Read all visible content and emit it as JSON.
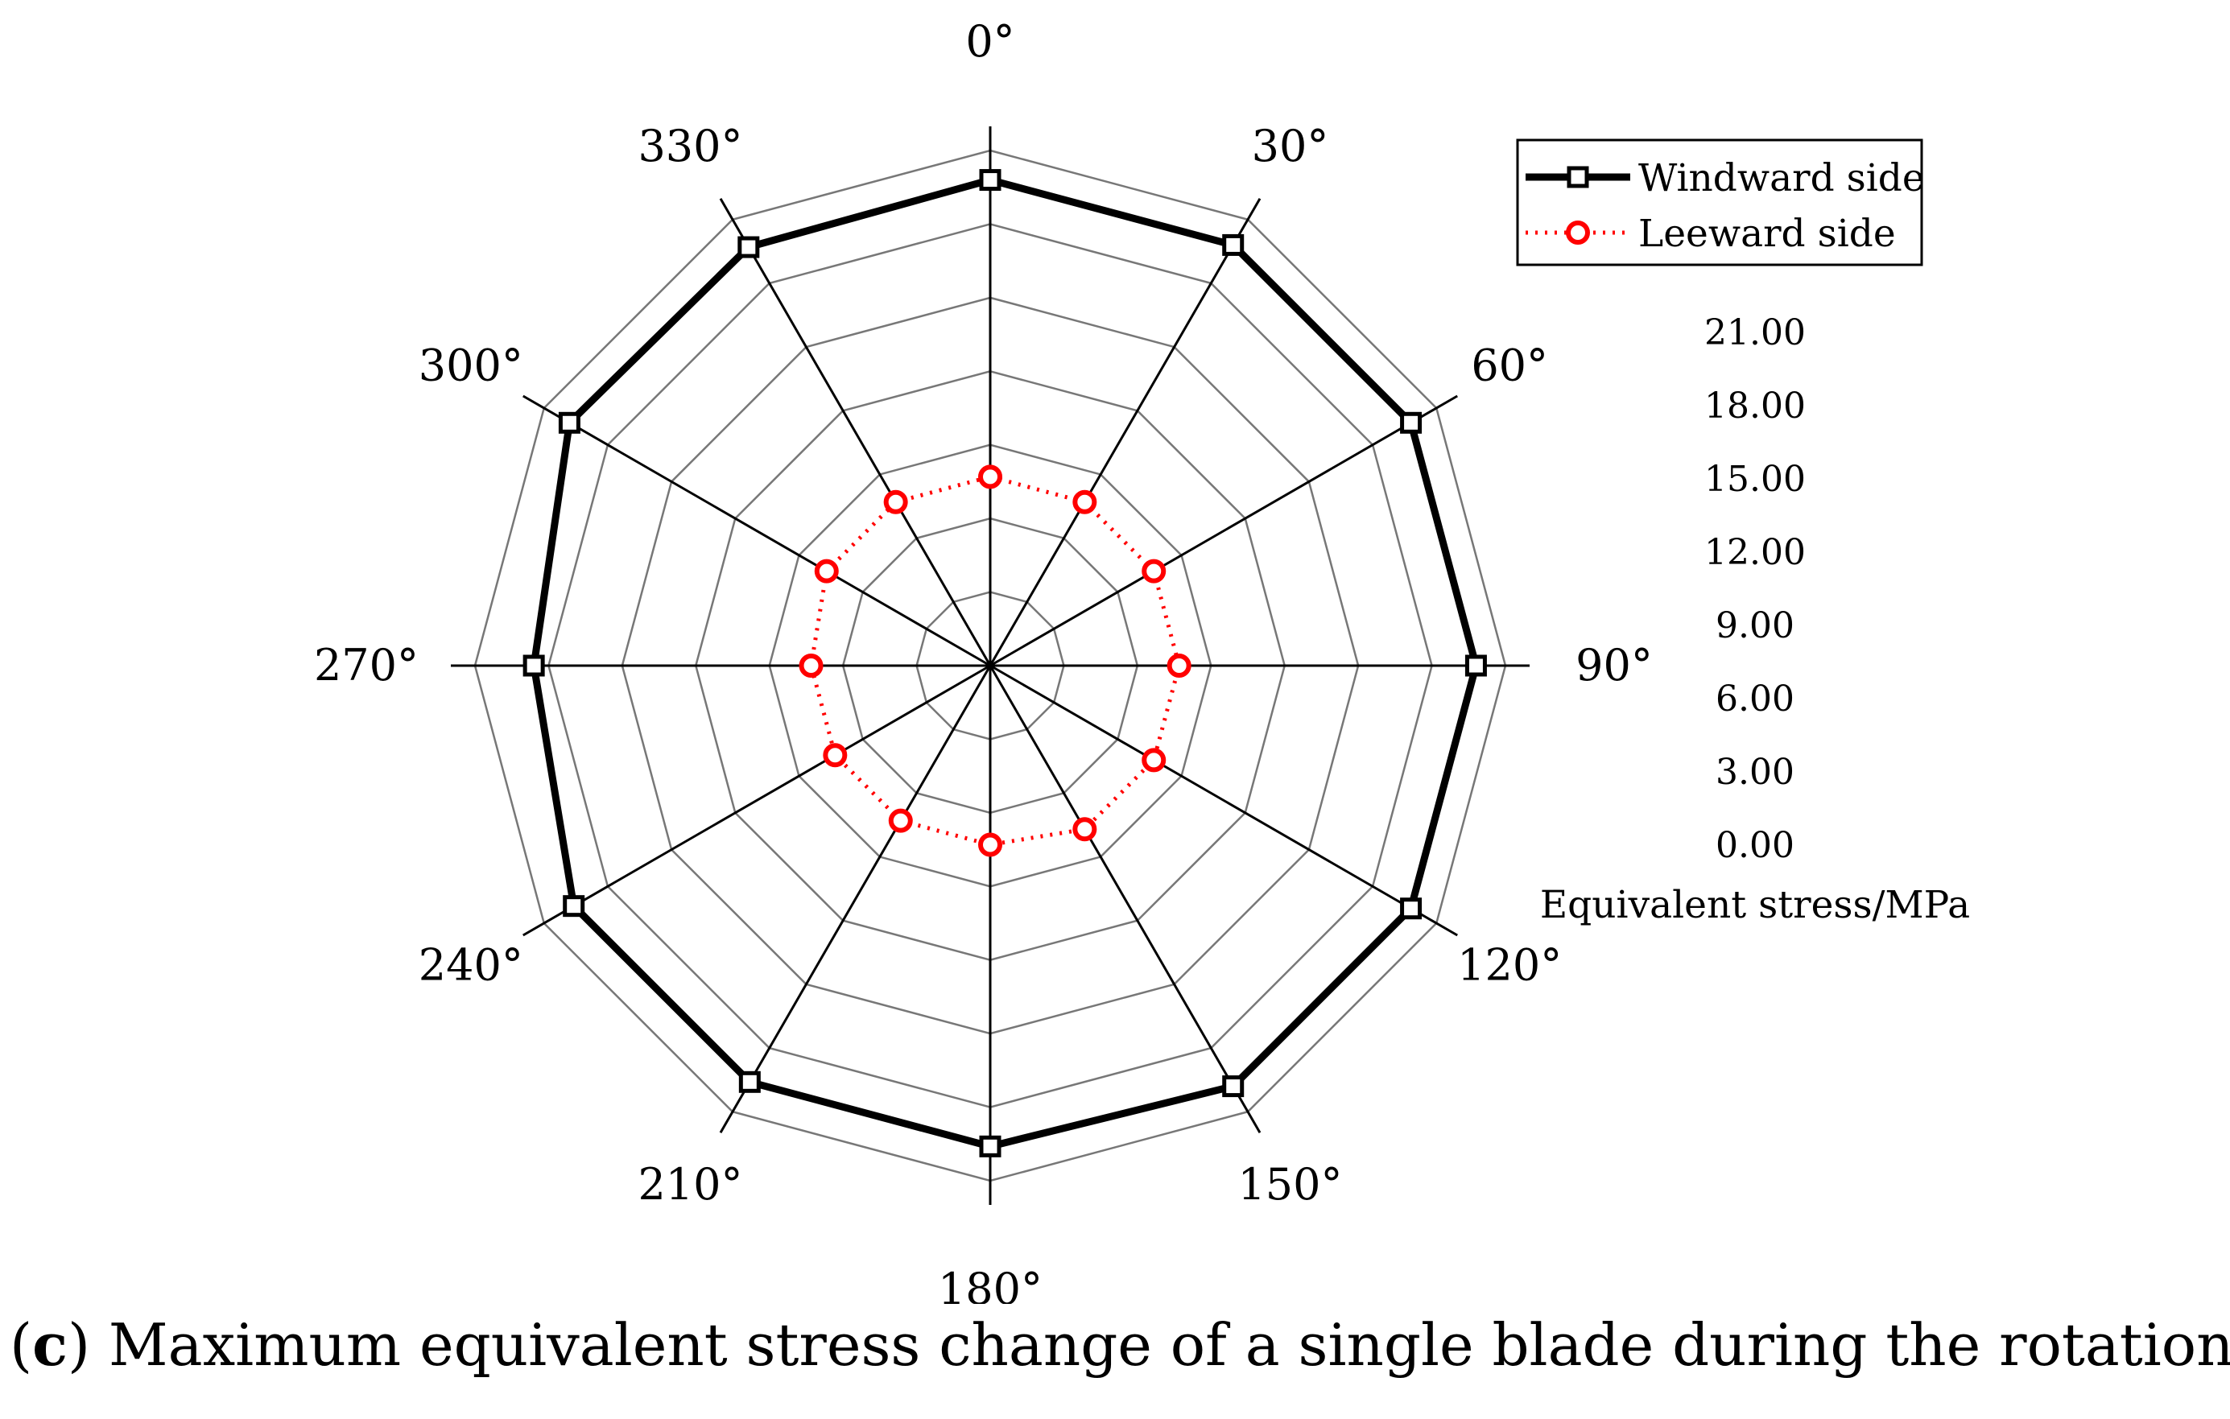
{
  "chart_data": {
    "type": "radar",
    "angle_labels": [
      "0°",
      "30°",
      "60°",
      "90°",
      "120°",
      "150°",
      "180°",
      "210°",
      "240°",
      "270°",
      "300°",
      "330°"
    ],
    "angles_deg": [
      0,
      30,
      60,
      90,
      120,
      150,
      180,
      210,
      240,
      270,
      300,
      330
    ],
    "series": [
      {
        "name": "Windward side",
        "color": "#000000",
        "marker": "square",
        "line_style": "solid",
        "values": [
          19.8,
          19.8,
          19.8,
          19.8,
          19.8,
          19.8,
          19.6,
          19.6,
          19.6,
          18.6,
          19.8,
          19.7
        ]
      },
      {
        "name": "Leeward side",
        "color": "#ff0000",
        "marker": "circle",
        "line_style": "dotted",
        "values": [
          7.7,
          7.7,
          7.7,
          7.7,
          7.7,
          7.7,
          7.3,
          7.3,
          7.3,
          7.3,
          7.7,
          7.7
        ]
      }
    ],
    "radial_ticks": [
      "0.00",
      "3.00",
      "6.00",
      "9.00",
      "12.00",
      "15.00",
      "18.00",
      "21.00"
    ],
    "radial_range": [
      0,
      21
    ],
    "radial_label": "Equivalent stress/MPa",
    "grid": true,
    "legend_position": "top-right"
  },
  "caption": {
    "label": "c",
    "text": " Maximum equivalent stress change of a single blade during the rotation period."
  }
}
